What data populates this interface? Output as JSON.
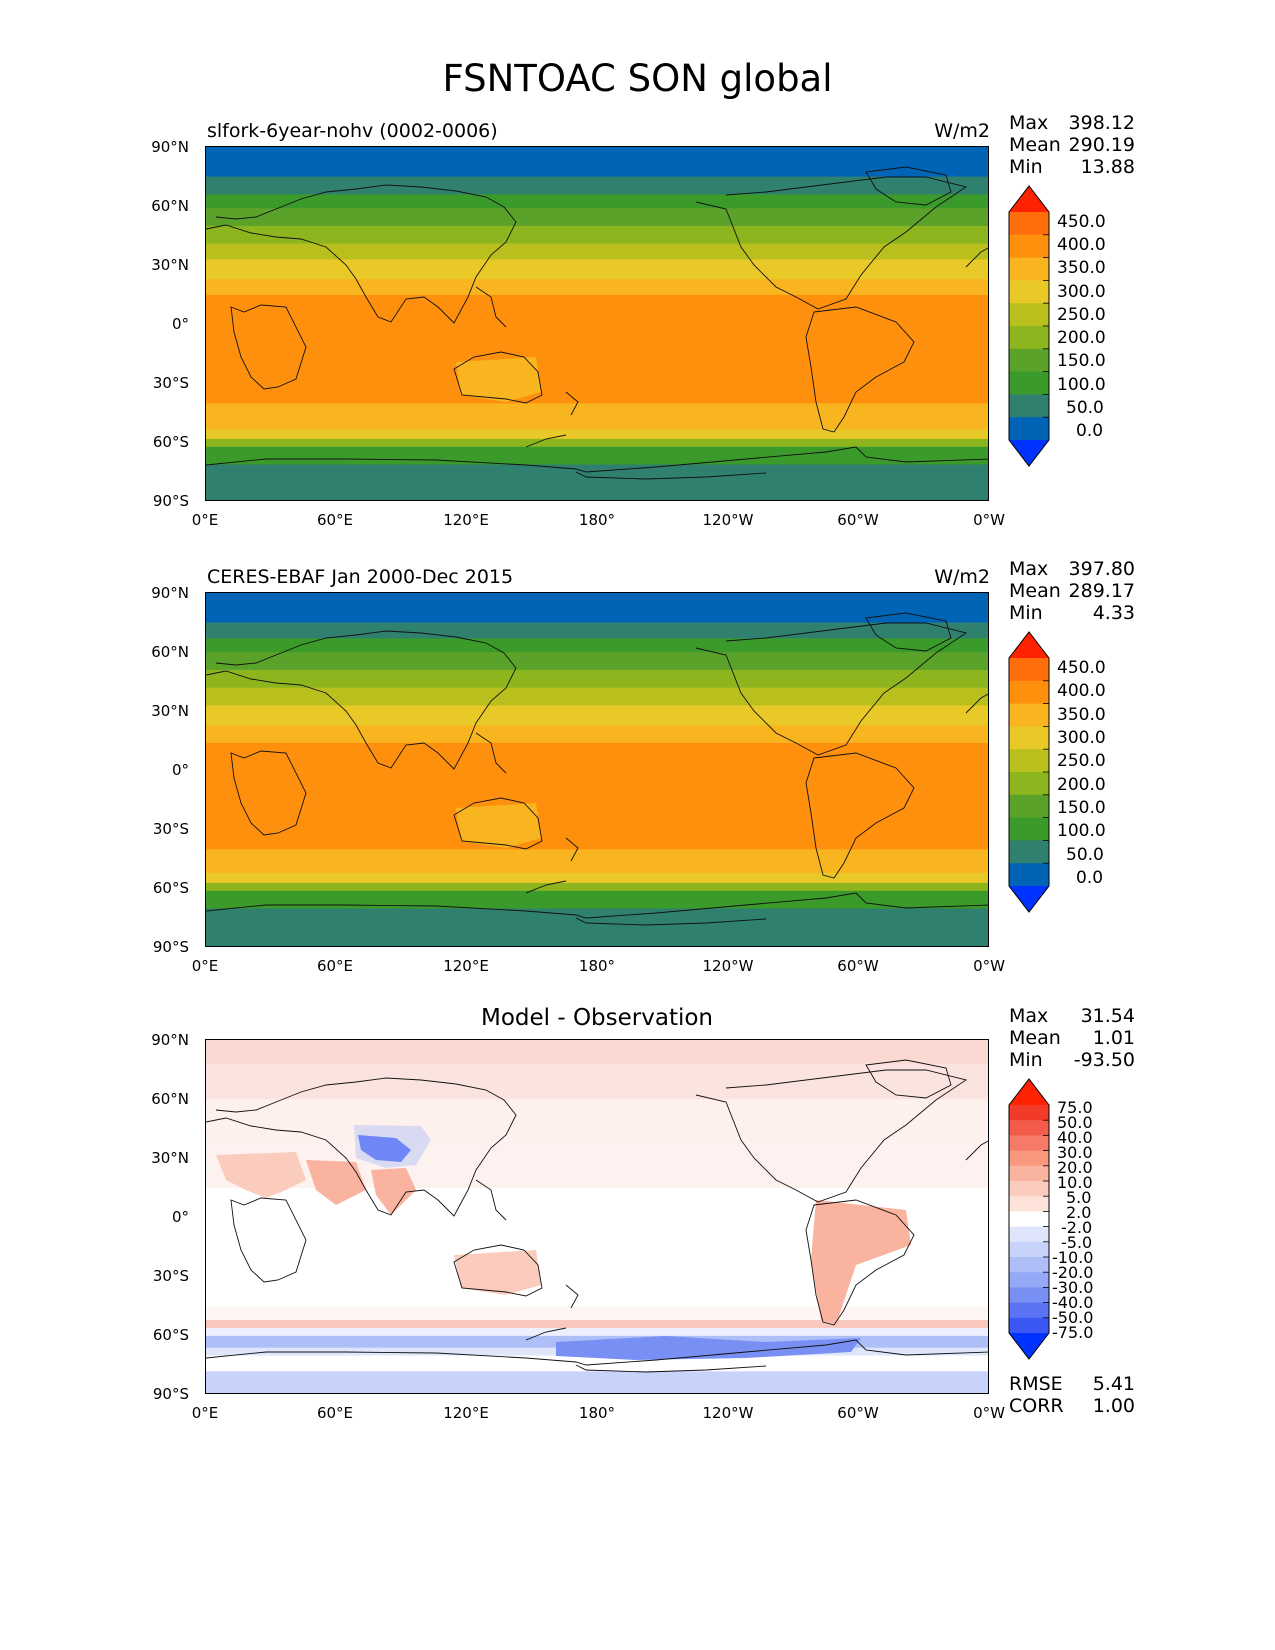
{
  "figure": {
    "title": "FSNTOAC SON global"
  },
  "chart_data": [
    {
      "type": "heatmap",
      "title": "slfork-6year-nohv (0002-0006)",
      "units": "W/m2",
      "stats": {
        "max_label": "Max",
        "max": "398.12",
        "mean_label": "Mean",
        "mean": "290.19",
        "min_label": "Min",
        "min": "13.88"
      },
      "xticks": [
        "0°E",
        "60°E",
        "120°E",
        "180°",
        "120°W",
        "60°W",
        "0°W"
      ],
      "yticks": [
        "90°N",
        "60°N",
        "30°N",
        "0°",
        "30°S",
        "60°S",
        "90°S"
      ],
      "colorbar": {
        "labels": [
          "450.0",
          "400.0",
          "350.0",
          "300.0",
          "250.0",
          "200.0",
          "150.0",
          "100.0",
          "50.0",
          "0.0"
        ],
        "colors": [
          "#ff2200",
          "#ff6e0b",
          "#ff900d",
          "#f8b51f",
          "#e8c928",
          "#b9c01e",
          "#8cb51e",
          "#5aa22a",
          "#3a9a2a",
          "#2f806e",
          "#0064b6",
          "#0033ff"
        ]
      },
      "bands": [
        {
          "lat_from": 90,
          "lat_to": 75,
          "color": "#0064b6"
        },
        {
          "lat_from": 75,
          "lat_to": 66,
          "color": "#2f806e"
        },
        {
          "lat_from": 66,
          "lat_to": 59,
          "color": "#3a9a2a"
        },
        {
          "lat_from": 59,
          "lat_to": 50,
          "color": "#5aa22a"
        },
        {
          "lat_from": 50,
          "lat_to": 41,
          "color": "#8cb51e"
        },
        {
          "lat_from": 41,
          "lat_to": 33,
          "color": "#b9c01e"
        },
        {
          "lat_from": 33,
          "lat_to": 23,
          "color": "#e8c928"
        },
        {
          "lat_from": 23,
          "lat_to": 15,
          "color": "#f8b51f"
        },
        {
          "lat_from": 15,
          "lat_to": -40,
          "color": "#ff900d"
        },
        {
          "lat_from": -40,
          "lat_to": -53,
          "color": "#f8b51f"
        },
        {
          "lat_from": -53,
          "lat_to": -58,
          "color": "#e8c928"
        },
        {
          "lat_from": -58,
          "lat_to": -62,
          "color": "#8cb51e"
        },
        {
          "lat_from": -62,
          "lat_to": -71,
          "color": "#3a9a2a"
        },
        {
          "lat_from": -71,
          "lat_to": -90,
          "color": "#2f806e"
        }
      ]
    },
    {
      "type": "heatmap",
      "title": "CERES-EBAF Jan 2000-Dec 2015",
      "units": "W/m2",
      "stats": {
        "max_label": "Max",
        "max": "397.80",
        "mean_label": "Mean",
        "mean": "289.17",
        "min_label": "Min",
        "min": "4.33"
      },
      "xticks": [
        "0°E",
        "60°E",
        "120°E",
        "180°",
        "120°W",
        "60°W",
        "0°W"
      ],
      "yticks": [
        "90°N",
        "60°N",
        "30°N",
        "0°",
        "30°S",
        "60°S",
        "90°S"
      ],
      "colorbar": {
        "labels": [
          "450.0",
          "400.0",
          "350.0",
          "300.0",
          "250.0",
          "200.0",
          "150.0",
          "100.0",
          "50.0",
          "0.0"
        ],
        "colors": [
          "#ff2200",
          "#ff6e0b",
          "#ff900d",
          "#f8b51f",
          "#e8c928",
          "#b9c01e",
          "#8cb51e",
          "#5aa22a",
          "#3a9a2a",
          "#2f806e",
          "#0064b6",
          "#0033ff"
        ]
      },
      "bands": [
        {
          "lat_from": 90,
          "lat_to": 75,
          "color": "#0064b6"
        },
        {
          "lat_from": 75,
          "lat_to": 67,
          "color": "#2f806e"
        },
        {
          "lat_from": 67,
          "lat_to": 60,
          "color": "#3a9a2a"
        },
        {
          "lat_from": 60,
          "lat_to": 51,
          "color": "#5aa22a"
        },
        {
          "lat_from": 51,
          "lat_to": 42,
          "color": "#8cb51e"
        },
        {
          "lat_from": 42,
          "lat_to": 33,
          "color": "#b9c01e"
        },
        {
          "lat_from": 33,
          "lat_to": 23,
          "color": "#e8c928"
        },
        {
          "lat_from": 23,
          "lat_to": 14,
          "color": "#f8b51f"
        },
        {
          "lat_from": 14,
          "lat_to": -40,
          "color": "#ff900d"
        },
        {
          "lat_from": -40,
          "lat_to": -52,
          "color": "#f8b51f"
        },
        {
          "lat_from": -52,
          "lat_to": -57,
          "color": "#e8c928"
        },
        {
          "lat_from": -57,
          "lat_to": -61,
          "color": "#8cb51e"
        },
        {
          "lat_from": -61,
          "lat_to": -70,
          "color": "#3a9a2a"
        },
        {
          "lat_from": -70,
          "lat_to": -90,
          "color": "#2f806e"
        }
      ]
    },
    {
      "type": "heatmap",
      "title": "Model - Observation",
      "units": "",
      "stats": {
        "max_label": "Max",
        "max": "31.54",
        "mean_label": "Mean",
        "mean": "1.01",
        "min_label": "Min",
        "min": "-93.50"
      },
      "extra": {
        "rmse_label": "RMSE",
        "rmse": "5.41",
        "corr_label": "CORR",
        "corr": "1.00"
      },
      "xticks": [
        "0°E",
        "60°E",
        "120°E",
        "180°",
        "120°W",
        "60°W",
        "0°W"
      ],
      "yticks": [
        "90°N",
        "60°N",
        "30°N",
        "0°",
        "30°S",
        "60°S",
        "90°S"
      ],
      "colorbar": {
        "labels": [
          "75.0",
          "50.0",
          "40.0",
          "30.0",
          "20.0",
          "10.0",
          "5.0",
          "2.0",
          "-2.0",
          "-5.0",
          "-10.0",
          "-20.0",
          "-30.0",
          "-40.0",
          "-50.0",
          "-75.0"
        ],
        "colors": [
          "#ff2200",
          "#f23a28",
          "#f35b4b",
          "#f57a68",
          "#f7987f",
          "#f9b39f",
          "#fbcbbd",
          "#fde3da",
          "#ffffff",
          "#dfe6fb",
          "#c7d3fa",
          "#aebff8",
          "#93a9f6",
          "#7890f4",
          "#5a74f3",
          "#3c58f4",
          "#0033ff"
        ]
      },
      "bands": [
        {
          "lat_from": 90,
          "lat_to": 78,
          "color": "#fbd9d2"
        },
        {
          "lat_from": 78,
          "lat_to": 60,
          "color": "#fbe4df"
        },
        {
          "lat_from": 60,
          "lat_to": 40,
          "color": "#fdf0ed"
        },
        {
          "lat_from": 40,
          "lat_to": 15,
          "color": "#fdf2ef"
        },
        {
          "lat_from": 15,
          "lat_to": -45,
          "color": "#ffffff"
        },
        {
          "lat_from": -45,
          "lat_to": -52,
          "color": "#fdf6f4"
        },
        {
          "lat_from": -52,
          "lat_to": -56,
          "color": "#f9c8be"
        },
        {
          "lat_from": -56,
          "lat_to": -60,
          "color": "#eef1fd"
        },
        {
          "lat_from": -60,
          "lat_to": -66,
          "color": "#aebff8"
        },
        {
          "lat_from": -66,
          "lat_to": -70,
          "color": "#dfe6fb"
        },
        {
          "lat_from": -70,
          "lat_to": -78,
          "color": "#ffffff"
        },
        {
          "lat_from": -78,
          "lat_to": -90,
          "color": "#c7d3fa"
        }
      ]
    }
  ]
}
